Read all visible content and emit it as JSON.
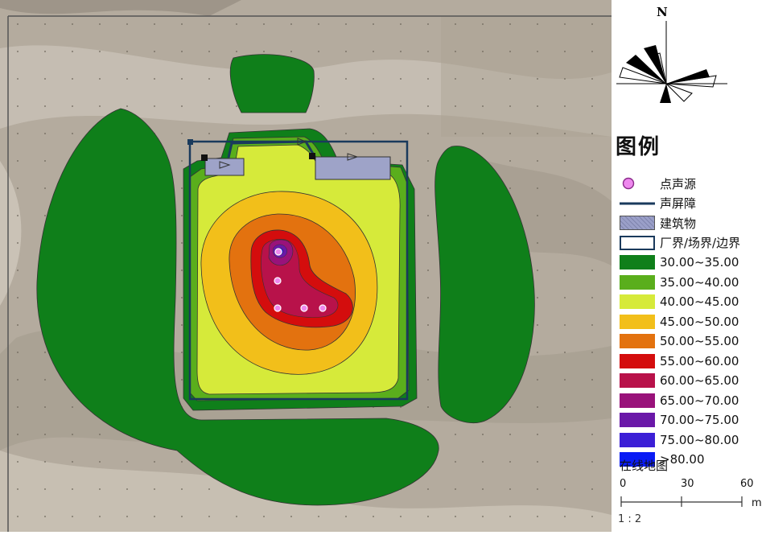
{
  "map": {
    "compass": {
      "north_label": "N"
    }
  },
  "legend": {
    "title": "图例",
    "items": [
      {
        "label": "点声源",
        "swatch": "point-source",
        "color": "#ee88ee"
      },
      {
        "label": "声屏障",
        "swatch": "barrier-line",
        "color": "#1a3a5c"
      },
      {
        "label": "建筑物",
        "swatch": "hatched-building",
        "color": "#9a9fc8"
      },
      {
        "label": "厂界/场界/边界",
        "swatch": "outline-box",
        "color": "#1a3a5c"
      },
      {
        "label": "30.00~35.00",
        "swatch": "fill",
        "color": "#0f7f1a"
      },
      {
        "label": "35.00~40.00",
        "swatch": "fill",
        "color": "#5aae1c"
      },
      {
        "label": "40.00~45.00",
        "swatch": "fill",
        "color": "#d6ea3a"
      },
      {
        "label": "45.00~50.00",
        "swatch": "fill",
        "color": "#f2bf1a"
      },
      {
        "label": "50.00~55.00",
        "swatch": "fill",
        "color": "#e3720f"
      },
      {
        "label": "55.00~60.00",
        "swatch": "fill",
        "color": "#d40d0d"
      },
      {
        "label": "60.00~65.00",
        "swatch": "fill",
        "color": "#b8124a"
      },
      {
        "label": "65.00~70.00",
        "swatch": "fill",
        "color": "#99127a"
      },
      {
        "label": "70.00~75.00",
        "swatch": "fill",
        "color": "#6a18a8"
      },
      {
        "label": "75.00~80.00",
        "swatch": "fill",
        "color": "#3c1fd6"
      },
      {
        "label": ">80.00",
        "swatch": "fill",
        "color": "#0a1cf5"
      }
    ],
    "online_map_label": "在线地图",
    "scale": {
      "ticks": [
        "0",
        "30",
        "60"
      ],
      "unit": "m",
      "ratio": "1 : 2"
    }
  }
}
